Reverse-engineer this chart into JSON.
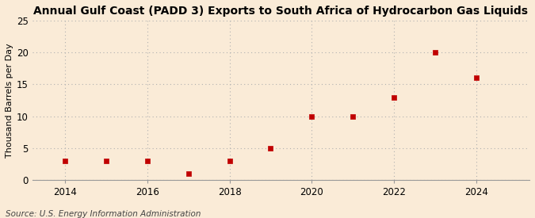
{
  "title": "Annual Gulf Coast (PADD 3) Exports to South Africa of Hydrocarbon Gas Liquids",
  "ylabel": "Thousand Barrels per Day",
  "source": "Source: U.S. Energy Information Administration",
  "background_color": "#faebd7",
  "years": [
    2014,
    2015,
    2016,
    2017,
    2018,
    2019,
    2020,
    2021,
    2022,
    2023,
    2024
  ],
  "values": [
    3,
    3,
    3,
    1,
    3,
    5,
    10,
    10,
    13,
    20,
    16
  ],
  "marker_color": "#c00000",
  "marker": "s",
  "marker_size": 4,
  "ylim": [
    0,
    25
  ],
  "yticks": [
    0,
    5,
    10,
    15,
    20,
    25
  ],
  "xticks": [
    2014,
    2016,
    2018,
    2020,
    2022,
    2024
  ],
  "xlim": [
    2013.2,
    2025.3
  ],
  "grid_color": "#b0b0b0",
  "grid_style": ":",
  "title_fontsize": 10,
  "label_fontsize": 8,
  "tick_fontsize": 8.5,
  "source_fontsize": 7.5
}
